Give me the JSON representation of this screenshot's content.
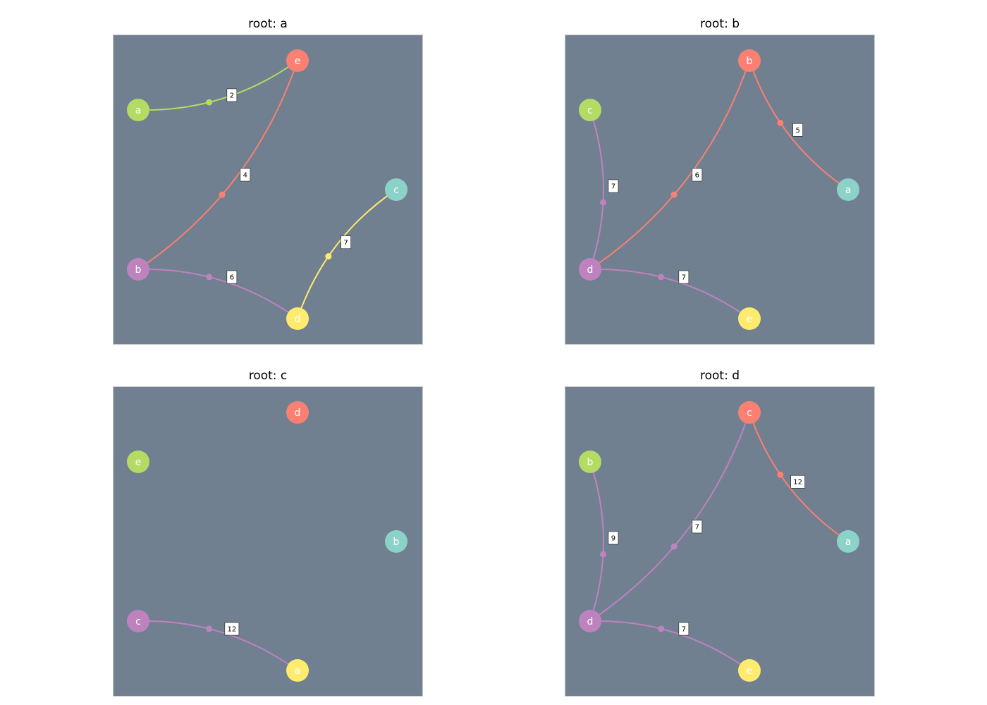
{
  "style": {
    "background": "#708090",
    "frame": "#c8c8c8",
    "label_box": "#ffffff",
    "palette": [
      "#fa8072",
      "#b4dc64",
      "#8cd2c8",
      "#be82be",
      "#ffeb6e"
    ]
  },
  "panels": [
    {
      "title": "root: a",
      "nodes": [
        {
          "label": "e",
          "color": "#fa8072"
        },
        {
          "label": "a",
          "color": "#b4dc64"
        },
        {
          "label": "c",
          "color": "#8cd2c8"
        },
        {
          "label": "b",
          "color": "#be82be"
        },
        {
          "label": "d",
          "color": "#ffeb6e"
        }
      ],
      "edges": [
        {
          "from": 1,
          "to": 0,
          "weight": "2",
          "color": "#b4dc64"
        },
        {
          "from": 3,
          "to": 0,
          "weight": "4",
          "color": "#fa8072"
        },
        {
          "from": 3,
          "to": 4,
          "weight": "6",
          "color": "#be82be"
        },
        {
          "from": 4,
          "to": 2,
          "weight": "7",
          "color": "#ffeb6e"
        }
      ]
    },
    {
      "title": "root: b",
      "nodes": [
        {
          "label": "b",
          "color": "#fa8072"
        },
        {
          "label": "c",
          "color": "#b4dc64"
        },
        {
          "label": "a",
          "color": "#8cd2c8"
        },
        {
          "label": "d",
          "color": "#be82be"
        },
        {
          "label": "e",
          "color": "#ffeb6e"
        }
      ],
      "edges": [
        {
          "from": 0,
          "to": 2,
          "weight": "5",
          "color": "#fa8072"
        },
        {
          "from": 3,
          "to": 0,
          "weight": "6",
          "color": "#fa8072"
        },
        {
          "from": 3,
          "to": 1,
          "weight": "7",
          "color": "#be82be"
        },
        {
          "from": 3,
          "to": 4,
          "weight": "7",
          "color": "#be82be"
        }
      ]
    },
    {
      "title": "root: c",
      "nodes": [
        {
          "label": "d",
          "color": "#fa8072"
        },
        {
          "label": "e",
          "color": "#b4dc64"
        },
        {
          "label": "b",
          "color": "#8cd2c8"
        },
        {
          "label": "c",
          "color": "#be82be"
        },
        {
          "label": "a",
          "color": "#ffeb6e"
        }
      ],
      "edges": [
        {
          "from": 3,
          "to": 4,
          "weight": "12",
          "color": "#be82be"
        }
      ]
    },
    {
      "title": "root: d",
      "nodes": [
        {
          "label": "c",
          "color": "#fa8072"
        },
        {
          "label": "b",
          "color": "#b4dc64"
        },
        {
          "label": "a",
          "color": "#8cd2c8"
        },
        {
          "label": "d",
          "color": "#be82be"
        },
        {
          "label": "e",
          "color": "#ffeb6e"
        }
      ],
      "edges": [
        {
          "from": 0,
          "to": 2,
          "weight": "12",
          "color": "#fa8072"
        },
        {
          "from": 3,
          "to": 1,
          "weight": "9",
          "color": "#be82be"
        },
        {
          "from": 3,
          "to": 0,
          "weight": "7",
          "color": "#be82be"
        },
        {
          "from": 3,
          "to": 4,
          "weight": "7",
          "color": "#be82be"
        }
      ]
    }
  ]
}
